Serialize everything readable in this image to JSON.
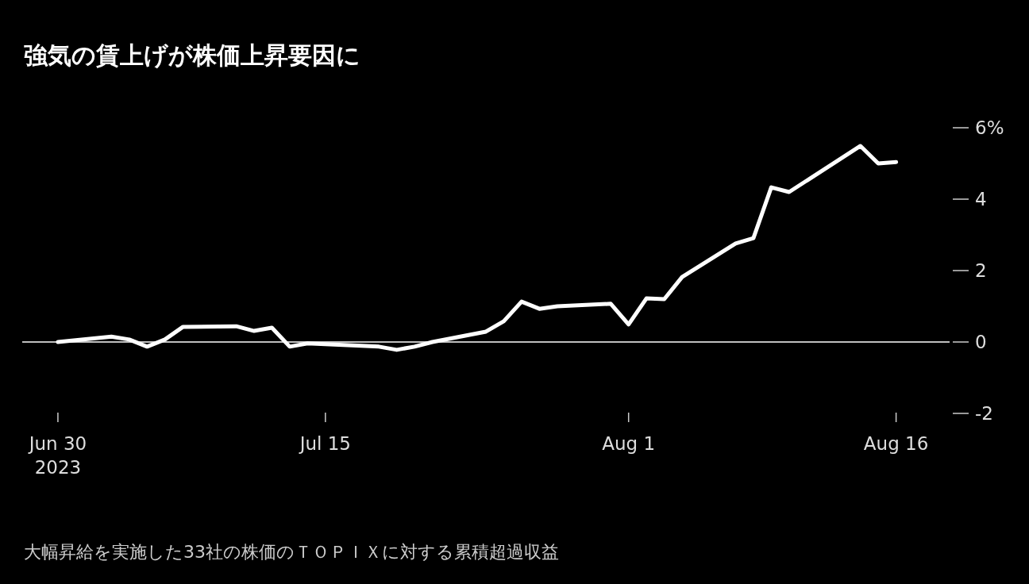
{
  "chart_data": {
    "type": "line",
    "title": "強気の賃上げが株価上昇要因に",
    "x": [
      "2023-06-30",
      "2023-07-03",
      "2023-07-04",
      "2023-07-05",
      "2023-07-06",
      "2023-07-07",
      "2023-07-10",
      "2023-07-11",
      "2023-07-12",
      "2023-07-13",
      "2023-07-14",
      "2023-07-18",
      "2023-07-19",
      "2023-07-20",
      "2023-07-21",
      "2023-07-24",
      "2023-07-25",
      "2023-07-26",
      "2023-07-27",
      "2023-07-28",
      "2023-07-31",
      "2023-08-01",
      "2023-08-02",
      "2023-08-03",
      "2023-08-04",
      "2023-08-07",
      "2023-08-08",
      "2023-08-09",
      "2023-08-10",
      "2023-08-14",
      "2023-08-15",
      "2023-08-16"
    ],
    "series": [
      {
        "color": "#ffffff",
        "values": [
          0.0,
          0.15,
          0.07,
          -0.13,
          0.07,
          0.42,
          0.44,
          0.31,
          0.4,
          -0.13,
          -0.04,
          -0.13,
          -0.22,
          -0.13,
          0.0,
          0.29,
          0.58,
          1.13,
          0.93,
          1.0,
          1.07,
          0.49,
          1.22,
          1.2,
          1.82,
          2.76,
          2.91,
          4.33,
          4.2,
          5.49,
          5.0,
          5.04
        ]
      }
    ],
    "xlim": [
      "2023-06-28",
      "2023-08-19"
    ],
    "xticks": [
      {
        "value": "2023-06-30",
        "label": "Jun 30\n2023"
      },
      {
        "value": "2023-07-15",
        "label": "Jul 15"
      },
      {
        "value": "2023-08-01",
        "label": "Aug 1"
      },
      {
        "value": "2023-08-16",
        "label": "Aug 16"
      }
    ],
    "ylim": [
      -2,
      6
    ],
    "yticks": [
      -2,
      0,
      2,
      4,
      {
        "value": 6,
        "label": "6%"
      }
    ],
    "ref_lines": [
      {
        "axis": "y",
        "value": 0,
        "color": "#ffffff"
      }
    ],
    "grid": false,
    "marker": "none",
    "line_style": "solid",
    "annotations": [
      "大幅昇給を実施した33社の株価のＴＯＰＩＸに対する累積超過収益"
    ]
  }
}
